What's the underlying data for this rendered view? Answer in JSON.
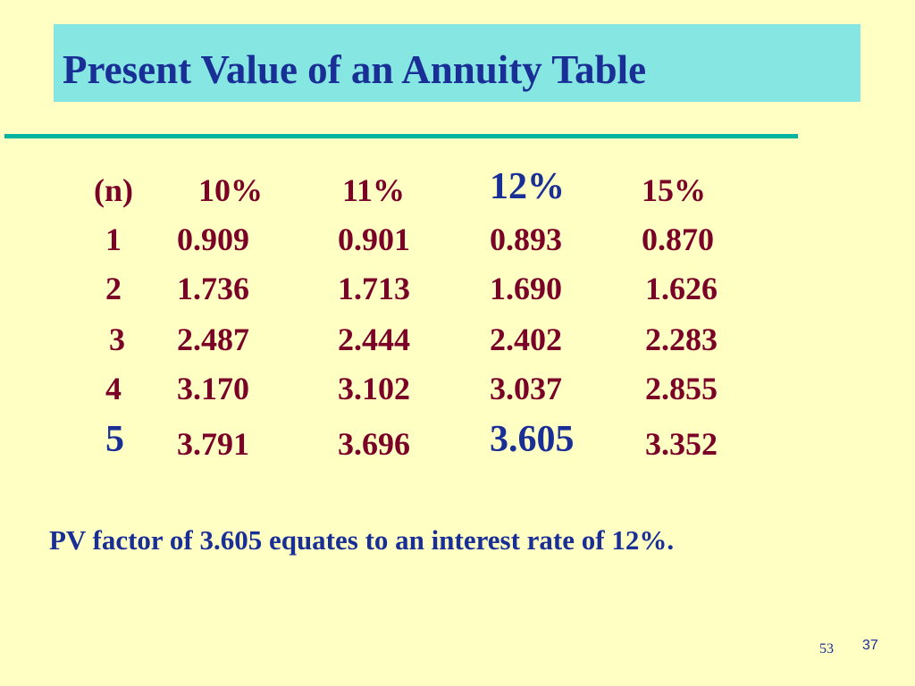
{
  "header": {
    "title": "Present Value of an Annuity Table"
  },
  "table": {
    "columns": [
      "(n)",
      "10%",
      "11%",
      "12%",
      "15%"
    ],
    "rows": [
      [
        "1",
        "0.909",
        "0.901",
        "0.893",
        "0.870"
      ],
      [
        "2",
        "1.736",
        "1.713",
        "1.690",
        "1.626"
      ],
      [
        "3",
        "2.487",
        "2.444",
        "2.402",
        "2.283"
      ],
      [
        "4",
        "3.170",
        "3.102",
        "3.037",
        "2.855"
      ],
      [
        "5",
        "3.791",
        "3.696",
        "3.605",
        "3.352"
      ]
    ]
  },
  "note": "PV factor of 3.605 equates to an interest rate of 12%.",
  "footer": {
    "slide_number": "53",
    "page_number": "37"
  }
}
